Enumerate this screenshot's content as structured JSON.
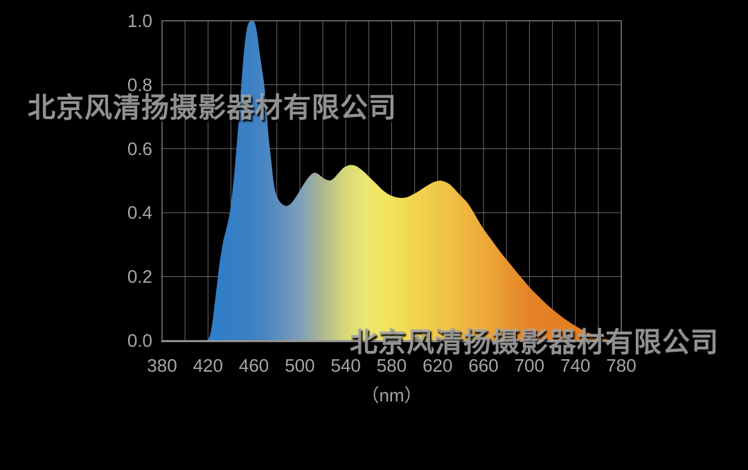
{
  "page": {
    "background": "#000000"
  },
  "watermarks": {
    "top_left": {
      "text": "北京风清扬摄影器材有限公司"
    },
    "bottom_right": {
      "text": "北京风清扬摄影器材有限公司"
    }
  },
  "style": {
    "grid_color": "#6b6b6b",
    "border_color": "#8f8f8f",
    "axis_line_color": "#9a9a9a",
    "tick_color": "#a6a6a6",
    "watermark_color": "#a2a2a2",
    "background": "#000000"
  },
  "chart_data": {
    "type": "area",
    "title": "",
    "xlabel": "（nm）",
    "ylabel": "",
    "xlim": [
      380,
      780
    ],
    "ylim": [
      0.0,
      1.0
    ],
    "x_ticks": [
      "380",
      "420",
      "460",
      "500",
      "540",
      "580",
      "620",
      "660",
      "700",
      "740",
      "780"
    ],
    "y_ticks": [
      "0.0",
      "0.2",
      "0.4",
      "0.6",
      "0.8",
      "1.0"
    ],
    "grid": {
      "x_step_nm": 20,
      "y_step": 0.2,
      "grid_on": true
    },
    "legend": "none",
    "points": [
      [
        414,
        0.0
      ],
      [
        417,
        0.0
      ],
      [
        420,
        0.004
      ],
      [
        422,
        0.02
      ],
      [
        424,
        0.06
      ],
      [
        426,
        0.12
      ],
      [
        428,
        0.18
      ],
      [
        430,
        0.24
      ],
      [
        433,
        0.305
      ],
      [
        436,
        0.35
      ],
      [
        439,
        0.4
      ],
      [
        441,
        0.455
      ],
      [
        443,
        0.525
      ],
      [
        445,
        0.61
      ],
      [
        447,
        0.7
      ],
      [
        449,
        0.8
      ],
      [
        451,
        0.89
      ],
      [
        453,
        0.955
      ],
      [
        455,
        0.99
      ],
      [
        458,
        1.0
      ],
      [
        461,
        0.99
      ],
      [
        463,
        0.955
      ],
      [
        465,
        0.9
      ],
      [
        467,
        0.85
      ],
      [
        469,
        0.8
      ],
      [
        471,
        0.72
      ],
      [
        473,
        0.63
      ],
      [
        475,
        0.565
      ],
      [
        477,
        0.5
      ],
      [
        479,
        0.462
      ],
      [
        482,
        0.437
      ],
      [
        485,
        0.426
      ],
      [
        488,
        0.421
      ],
      [
        491,
        0.425
      ],
      [
        494,
        0.436
      ],
      [
        498,
        0.457
      ],
      [
        502,
        0.481
      ],
      [
        506,
        0.503
      ],
      [
        509,
        0.516
      ],
      [
        512,
        0.524
      ],
      [
        515,
        0.523
      ],
      [
        518,
        0.515
      ],
      [
        521,
        0.507
      ],
      [
        524,
        0.502
      ],
      [
        527,
        0.501
      ],
      [
        530,
        0.509
      ],
      [
        534,
        0.525
      ],
      [
        538,
        0.54
      ],
      [
        541,
        0.546
      ],
      [
        544,
        0.549
      ],
      [
        548,
        0.547
      ],
      [
        552,
        0.539
      ],
      [
        557,
        0.524
      ],
      [
        562,
        0.506
      ],
      [
        567,
        0.489
      ],
      [
        572,
        0.471
      ],
      [
        577,
        0.458
      ],
      [
        582,
        0.45
      ],
      [
        586,
        0.447
      ],
      [
        590,
        0.446
      ],
      [
        594,
        0.449
      ],
      [
        598,
        0.456
      ],
      [
        603,
        0.466
      ],
      [
        608,
        0.478
      ],
      [
        613,
        0.489
      ],
      [
        617,
        0.496
      ],
      [
        620,
        0.499
      ],
      [
        623,
        0.5
      ],
      [
        626,
        0.497
      ],
      [
        630,
        0.49
      ],
      [
        634,
        0.477
      ],
      [
        638,
        0.461
      ],
      [
        642,
        0.446
      ],
      [
        646,
        0.431
      ],
      [
        651,
        0.403
      ],
      [
        656,
        0.372
      ],
      [
        661,
        0.344
      ],
      [
        666,
        0.32
      ],
      [
        671,
        0.295
      ],
      [
        676,
        0.271
      ],
      [
        681,
        0.249
      ],
      [
        686,
        0.227
      ],
      [
        691,
        0.205
      ],
      [
        696,
        0.184
      ],
      [
        701,
        0.163
      ],
      [
        706,
        0.145
      ],
      [
        711,
        0.127
      ],
      [
        716,
        0.11
      ],
      [
        721,
        0.095
      ],
      [
        726,
        0.081
      ],
      [
        731,
        0.067
      ],
      [
        736,
        0.055
      ],
      [
        741,
        0.044
      ],
      [
        746,
        0.034
      ],
      [
        751,
        0.025
      ],
      [
        756,
        0.017
      ],
      [
        761,
        0.01
      ],
      [
        766,
        0.005
      ],
      [
        770,
        0.002
      ],
      [
        775,
        0.0
      ]
    ],
    "gradient_stops": [
      {
        "nm": 380,
        "color": "#2e7dc7"
      },
      {
        "nm": 430,
        "color": "#307ec8"
      },
      {
        "nm": 455,
        "color": "#3a80c4"
      },
      {
        "nm": 470,
        "color": "#4886c2"
      },
      {
        "nm": 490,
        "color": "#6f94bb"
      },
      {
        "nm": 500,
        "color": "#7d9fbc"
      },
      {
        "nm": 517,
        "color": "#a8b294"
      },
      {
        "nm": 540,
        "color": "#d8d977"
      },
      {
        "nm": 558,
        "color": "#ece773"
      },
      {
        "nm": 572,
        "color": "#f1e561"
      },
      {
        "nm": 585,
        "color": "#f2df57"
      },
      {
        "nm": 600,
        "color": "#f2d44f"
      },
      {
        "nm": 620,
        "color": "#f0c848"
      },
      {
        "nm": 640,
        "color": "#efb941"
      },
      {
        "nm": 655,
        "color": "#eeae3d"
      },
      {
        "nm": 670,
        "color": "#eba135"
      },
      {
        "nm": 685,
        "color": "#e8912e"
      },
      {
        "nm": 700,
        "color": "#e58427"
      },
      {
        "nm": 730,
        "color": "#e47e21"
      },
      {
        "nm": 780,
        "color": "#e47c1f"
      }
    ]
  }
}
